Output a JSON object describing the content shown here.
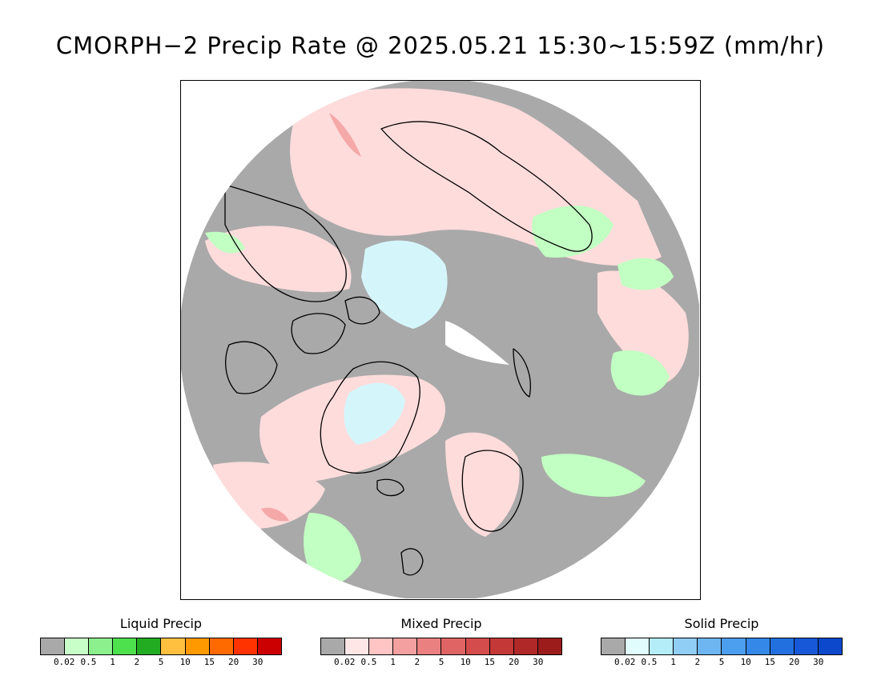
{
  "title": "CMORPH−2 Precip Rate @ 2025.05.21 15:30~15:59Z (mm/hr)",
  "map": {
    "background": "#a9a9a9",
    "coast_color": "#000000",
    "palette": {
      "liquid_light": "#c2ffc2",
      "mixed_light": "#ffdcdc",
      "mixed_mid": "#f5a8a8",
      "solid_light": "#d4f6fb",
      "pole_gap": "#ffffff"
    }
  },
  "legends": [
    {
      "title": "Liquid Precip",
      "ticks": [
        "0.02",
        "0.5",
        "1",
        "2",
        "5",
        "10",
        "15",
        "20",
        "30"
      ],
      "colors": [
        "#a9a9a9",
        "#c8ffc8",
        "#8cf08c",
        "#4ee14e",
        "#22ac22",
        "#ffbf3f",
        "#ff9900",
        "#ff6a00",
        "#ff3300",
        "#cc0000"
      ]
    },
    {
      "title": "Mixed Precip",
      "ticks": [
        "0.02",
        "0.5",
        "1",
        "2",
        "5",
        "10",
        "15",
        "20",
        "30"
      ],
      "colors": [
        "#a9a9a9",
        "#ffe6e6",
        "#ffc4c4",
        "#f5a0a0",
        "#eb8080",
        "#e06464",
        "#d44c4c",
        "#c43838",
        "#b02828",
        "#9c1c1c"
      ]
    },
    {
      "title": "Solid Precip",
      "ticks": [
        "0.02",
        "0.5",
        "1",
        "2",
        "5",
        "10",
        "15",
        "20",
        "30"
      ],
      "colors": [
        "#a9a9a9",
        "#e0fcfc",
        "#b4ecf8",
        "#90cef6",
        "#6eb6f2",
        "#4c9eee",
        "#3488e8",
        "#2270e0",
        "#1658d8",
        "#0c48cc"
      ]
    }
  ]
}
